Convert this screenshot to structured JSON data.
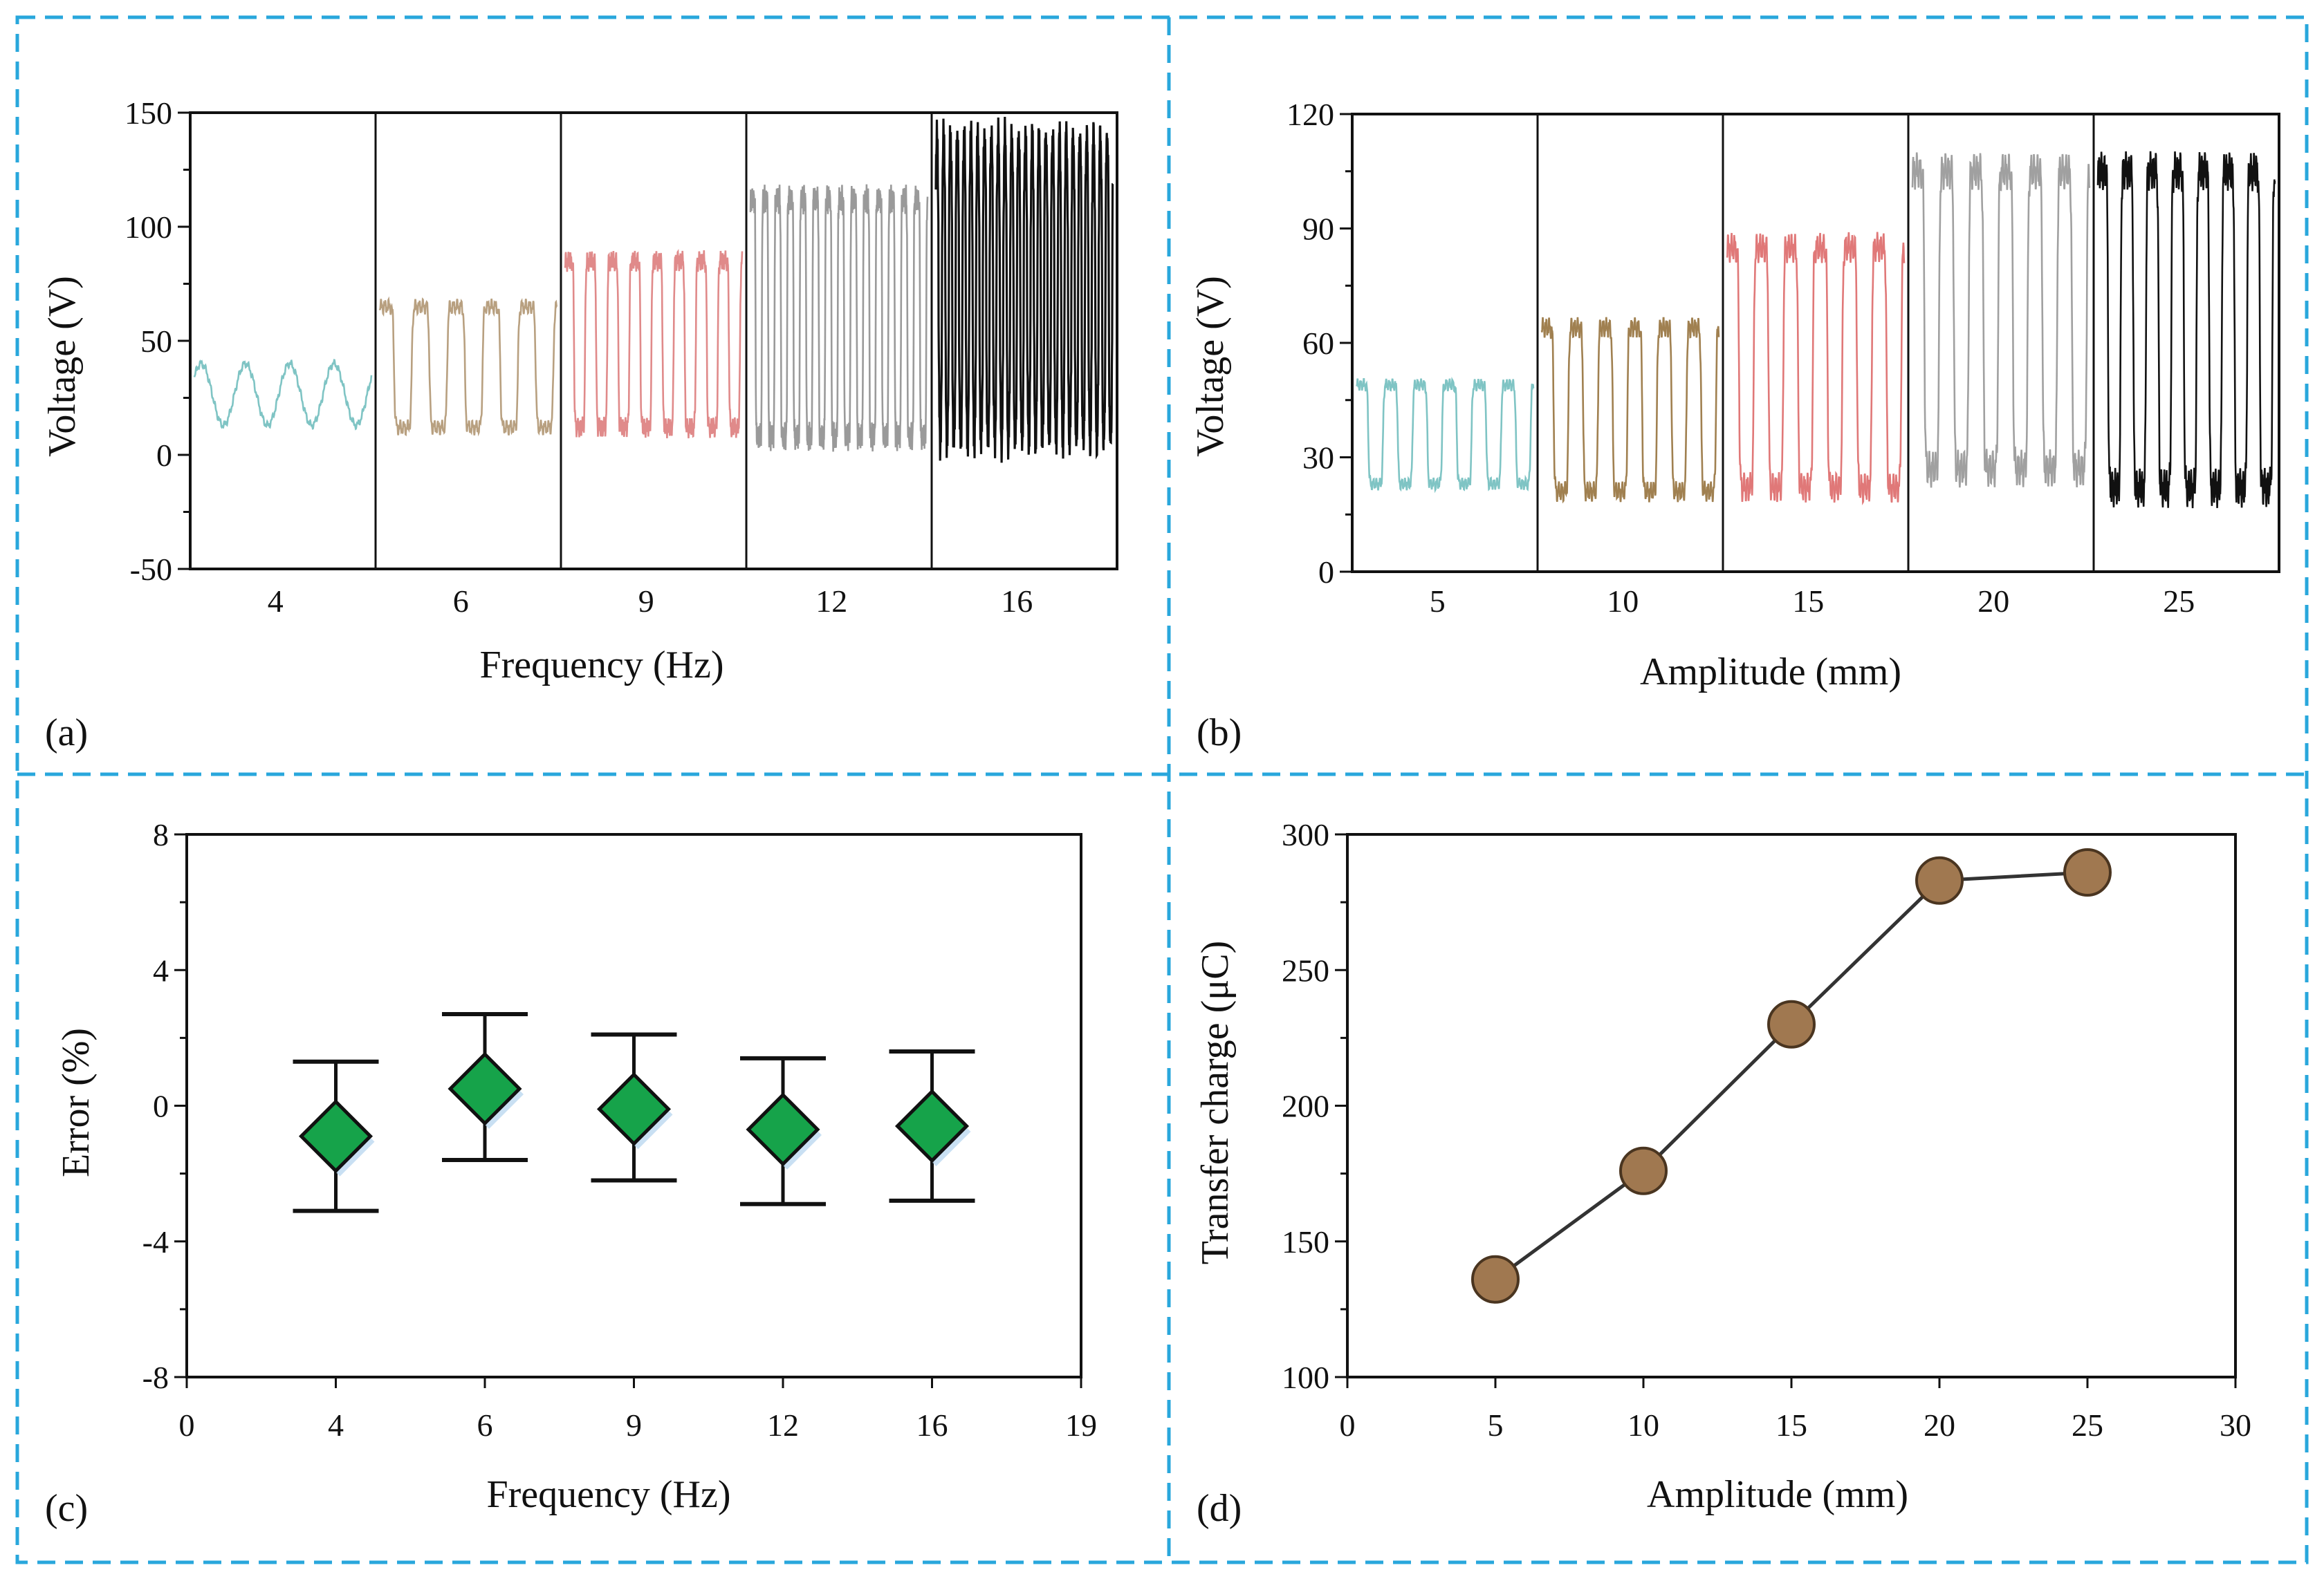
{
  "figure": {
    "border_color": "#29a7dc",
    "panels": [
      "(a)",
      "(b)",
      "(c)",
      "(d)"
    ]
  },
  "chart_data": [
    {
      "panel": "(a)",
      "type": "line",
      "xlabel": "Frequency (Hz)",
      "ylabel": "Voltage (V)",
      "ylim": [
        -50,
        150
      ],
      "yticks": [
        "150",
        "100",
        "50",
        "0",
        "-50"
      ],
      "yticks_values": [
        150,
        100,
        50,
        0,
        -50
      ],
      "segments": [
        {
          "label": "4",
          "color": "#7fc4c4",
          "low": 13,
          "high": 40,
          "cycles": 4,
          "shape": "smooth"
        },
        {
          "label": "6",
          "color": "#b8a080",
          "low": 12,
          "high": 65,
          "cycles": 5,
          "shape": "square"
        },
        {
          "label": "9",
          "color": "#e08a8a",
          "low": 12,
          "high": 85,
          "cycles": 8,
          "shape": "square"
        },
        {
          "label": "12",
          "color": "#9a9a9a",
          "low": 8,
          "high": 112,
          "cycles": 14,
          "shape": "square"
        },
        {
          "label": "16",
          "color": "#111111",
          "low": 5,
          "high": 140,
          "cycles": 26,
          "shape": "sharp"
        }
      ]
    },
    {
      "panel": "(b)",
      "type": "line",
      "xlabel": "Amplitude (mm)",
      "ylabel": "Voltage (V)",
      "ylim": [
        0,
        120
      ],
      "yticks": [
        "120",
        "90",
        "60",
        "30",
        "0"
      ],
      "yticks_values": [
        120,
        90,
        60,
        30,
        0
      ],
      "segments": [
        {
          "label": "5",
          "color": "#7fc4c4",
          "low": 23,
          "high": 49,
          "cycles": 6,
          "shape": "square"
        },
        {
          "label": "10",
          "color": "#a08050",
          "low": 21,
          "high": 64,
          "cycles": 6,
          "shape": "square"
        },
        {
          "label": "15",
          "color": "#e07878",
          "low": 22,
          "high": 85,
          "cycles": 6,
          "shape": "square"
        },
        {
          "label": "20",
          "color": "#a0a0a0",
          "low": 27,
          "high": 105,
          "cycles": 6,
          "shape": "square"
        },
        {
          "label": "25",
          "color": "#111111",
          "low": 22,
          "high": 105,
          "cycles": 7,
          "shape": "square"
        }
      ]
    },
    {
      "panel": "(c)",
      "type": "scatter",
      "xlabel": "Frequency (Hz)",
      "ylabel": "Error (%)",
      "ylim": [
        -8,
        8
      ],
      "yticks": [
        "8",
        "4",
        "0",
        "-4",
        "-8"
      ],
      "yticks_values": [
        8,
        4,
        0,
        -4,
        -8
      ],
      "xticks": [
        "0",
        "4",
        "6",
        "9",
        "12",
        "16",
        "19"
      ],
      "marker_color": "#16a34a",
      "points": [
        {
          "x": "4",
          "y": -0.9,
          "err_low": -3.1,
          "err_high": 1.3
        },
        {
          "x": "6",
          "y": 0.5,
          "err_low": -1.6,
          "err_high": 2.7
        },
        {
          "x": "9",
          "y": -0.1,
          "err_low": -2.2,
          "err_high": 2.1
        },
        {
          "x": "12",
          "y": -0.7,
          "err_low": -2.9,
          "err_high": 1.4
        },
        {
          "x": "16",
          "y": -0.6,
          "err_low": -2.8,
          "err_high": 1.6
        }
      ]
    },
    {
      "panel": "(d)",
      "type": "line",
      "xlabel": "Amplitude (mm)",
      "ylabel": "Transfer charge (μC)",
      "xlim": [
        0,
        30
      ],
      "ylim": [
        100,
        300
      ],
      "xticks": [
        "0",
        "5",
        "10",
        "15",
        "20",
        "25",
        "30"
      ],
      "xticks_values": [
        0,
        5,
        10,
        15,
        20,
        25,
        30
      ],
      "yticks": [
        "300",
        "250",
        "200",
        "150",
        "100"
      ],
      "yticks_values": [
        300,
        250,
        200,
        150,
        100
      ],
      "marker_color": "#a07850",
      "x": [
        5,
        10,
        15,
        20,
        25
      ],
      "y": [
        136,
        176,
        230,
        283,
        286
      ]
    }
  ]
}
